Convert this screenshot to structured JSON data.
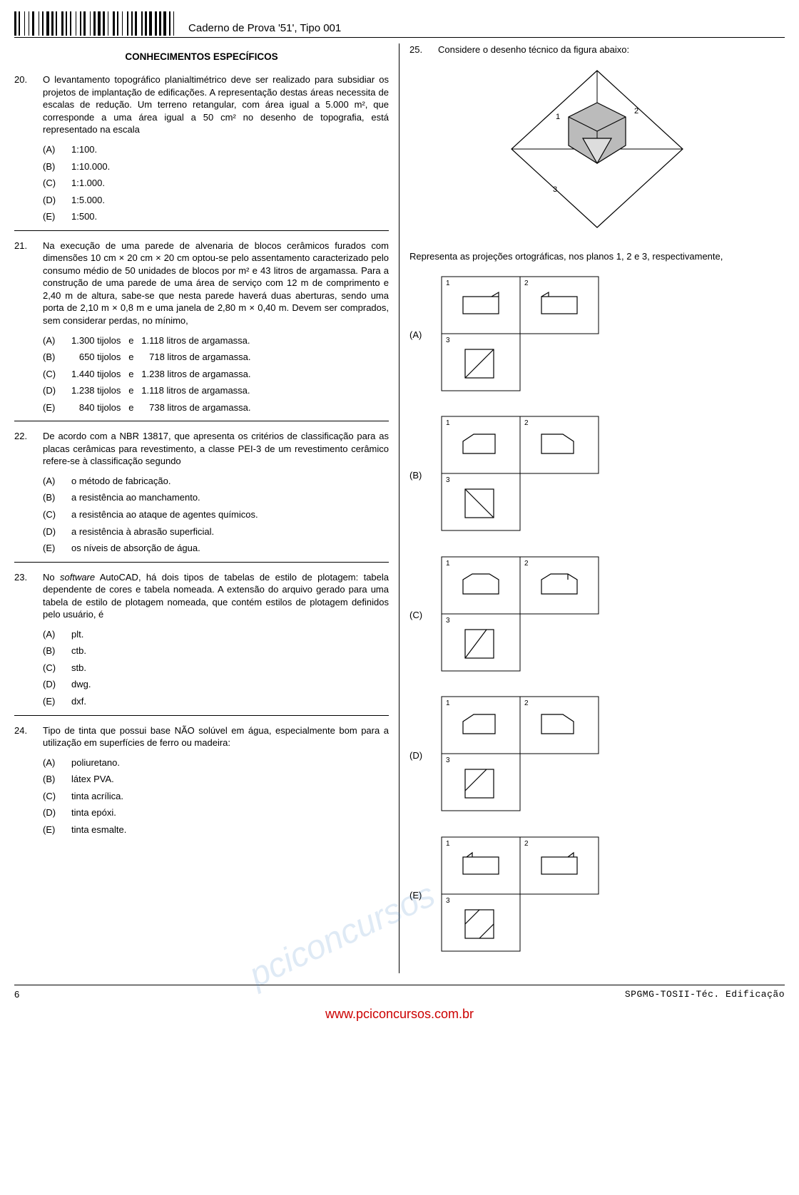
{
  "header": {
    "caderno": "Caderno de Prova '51', Tipo 001",
    "barcode_widths": [
      2,
      1,
      1,
      3,
      1,
      2,
      1,
      1,
      2,
      3,
      1,
      1,
      2,
      1,
      3,
      1,
      2,
      1,
      1,
      3,
      2,
      1,
      1,
      2,
      1,
      3,
      1,
      2,
      1,
      1,
      2,
      3,
      1,
      1,
      2,
      1,
      3,
      1,
      2,
      1,
      1,
      3,
      2,
      1,
      1,
      2,
      1,
      3,
      1,
      2,
      1,
      1,
      2,
      3,
      1,
      1,
      2,
      1,
      3,
      1,
      2,
      1,
      2,
      1,
      3,
      1,
      2,
      1,
      1,
      2
    ]
  },
  "section_title": "CONHECIMENTOS ESPECÍFICOS",
  "questions_left": [
    {
      "num": "20.",
      "text": "O levantamento topográfico planialtimétrico deve ser realizado para subsidiar os projetos de implantação de edificações. A representação destas áreas necessita de escalas de redução. Um terreno retangular, com área igual a 5.000 m², que corresponde a uma área igual a 50 cm² no desenho de topografia, está representado na escala",
      "options": [
        {
          "l": "(A)",
          "t": "1:100."
        },
        {
          "l": "(B)",
          "t": "1:10.000."
        },
        {
          "l": "(C)",
          "t": "1:1.000."
        },
        {
          "l": "(D)",
          "t": "1:5.000."
        },
        {
          "l": "(E)",
          "t": "1:500."
        }
      ]
    },
    {
      "num": "21.",
      "text": "Na execução de uma parede de alvenaria de blocos cerâmicos furados com dimensões 10 cm × 20 cm × 20 cm optou-se pelo assentamento caracterizado pelo consumo médio de 50 unidades de blocos por m² e 43 litros de argamassa. Para a construção de uma parede de uma área de serviço com 12 m de comprimento e 2,40 m de altura, sabe-se que nesta parede haverá duas aberturas, sendo uma porta de 2,10 m × 0,8 m e uma janela de 2,80 m × 0,40 m. Devem ser comprados, sem considerar perdas, no mínimo,",
      "options": [
        {
          "l": "(A)",
          "t": "1.300 tijolos   e   1.118 litros de argamassa."
        },
        {
          "l": "(B)",
          "t": "   650 tijolos   e      718 litros de argamassa."
        },
        {
          "l": "(C)",
          "t": "1.440 tijolos   e   1.238 litros de argamassa."
        },
        {
          "l": "(D)",
          "t": "1.238 tijolos   e   1.118 litros de argamassa."
        },
        {
          "l": "(E)",
          "t": "   840 tijolos   e      738 litros de argamassa."
        }
      ],
      "tijolos": true
    },
    {
      "num": "22.",
      "text": "De acordo com a NBR 13817, que apresenta os critérios de classificação para as placas cerâmicas para revestimento, a classe PEI-3 de um revestimento cerâmico refere-se à classificação segundo",
      "options": [
        {
          "l": "(A)",
          "t": "o método de fabricação."
        },
        {
          "l": "(B)",
          "t": "a resistência ao manchamento."
        },
        {
          "l": "(C)",
          "t": "a resistência ao ataque de agentes químicos."
        },
        {
          "l": "(D)",
          "t": "a resistência à abrasão superficial."
        },
        {
          "l": "(E)",
          "t": "os níveis de absorção de água."
        }
      ]
    },
    {
      "num": "23.",
      "text_html": "No <i>software</i> AutoCAD, há dois tipos de tabelas de estilo de plotagem: tabela dependente de cores e tabela nomeada. A extensão do arquivo gerado para uma tabela de estilo de plotagem nomeada, que contém estilos de plotagem definidos pelo usuário, é",
      "options": [
        {
          "l": "(A)",
          "t": "plt."
        },
        {
          "l": "(B)",
          "t": "ctb."
        },
        {
          "l": "(C)",
          "t": "stb."
        },
        {
          "l": "(D)",
          "t": "dwg."
        },
        {
          "l": "(E)",
          "t": "dxf."
        }
      ]
    },
    {
      "num": "24.",
      "text": "Tipo de tinta que possui base NÃO solúvel em água, especialmente bom para a utilização em superfícies de ferro ou madeira:",
      "options": [
        {
          "l": "(A)",
          "t": "poliuretano."
        },
        {
          "l": "(B)",
          "t": "látex PVA."
        },
        {
          "l": "(C)",
          "t": "tinta acrílica."
        },
        {
          "l": "(D)",
          "t": "tinta epóxi."
        },
        {
          "l": "(E)",
          "t": "tinta esmalte."
        }
      ]
    }
  ],
  "q25": {
    "num": "25.",
    "lead": "Considere o desenho técnico da figura abaixo:",
    "after_fig": "Representa as projeções ortográficas, nos planos 1, 2 e 3, respectivamente,",
    "option_labels": [
      "(A)",
      "(B)",
      "(C)",
      "(D)",
      "(E)"
    ],
    "proj_variants": {
      "A": {
        "p1": "rect_tick_tr",
        "p2": "rect_tick_tl",
        "p3": "square_diag"
      },
      "B": {
        "p1": "pent_left",
        "p2": "pent_right",
        "p3": "square_tri_bl"
      },
      "C": {
        "p1": "rect_roof",
        "p2": "rect_roof_r",
        "p3": "square_diag2"
      },
      "D": {
        "p1": "pent_left",
        "p2": "pent_right",
        "p3": "square_diag3"
      },
      "E": {
        "p1": "rect_tick_tl2",
        "p2": "rect_tick_tr2",
        "p3": "square_hatch"
      }
    }
  },
  "footer": {
    "page": "6",
    "code": "SPGMG-TOSII-Téc. Edificação",
    "url": "www.pciconcursos.com.br"
  },
  "watermark": "pciconcursos"
}
